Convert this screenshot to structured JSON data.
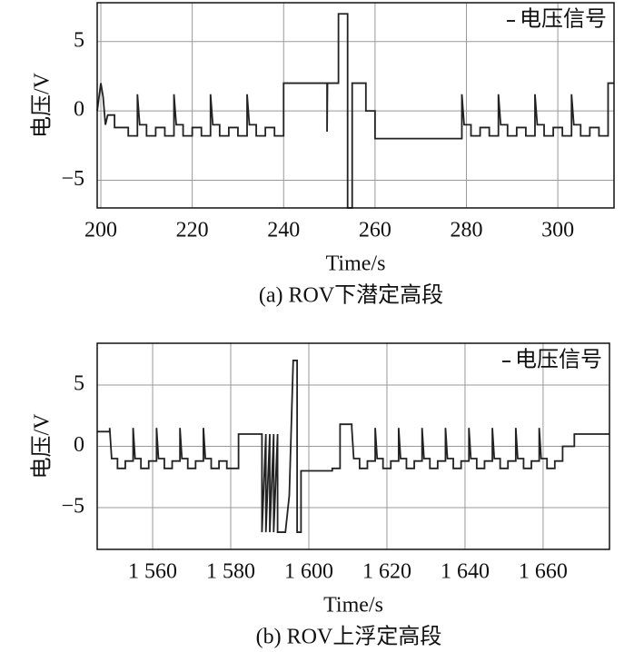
{
  "chart_data": [
    {
      "type": "line",
      "caption": "(a) ROV下潜定高段",
      "xlabel": "Time/s",
      "ylabel": "电压/V",
      "xlim": [
        199.2,
        312.3
      ],
      "ylim": [
        -7,
        7.8
      ],
      "xticks": [
        200,
        220,
        240,
        260,
        280,
        300
      ],
      "yticks": [
        {
          "value": -5,
          "label": "−5"
        },
        0,
        5
      ],
      "grid": true,
      "legend": "upper right",
      "x": [
        199.2,
        200,
        200.5,
        201,
        201.5,
        203,
        203,
        206,
        206,
        208,
        208,
        208.5,
        210,
        210,
        212,
        212,
        214,
        214,
        216,
        216,
        216.5,
        218,
        218,
        220,
        220,
        222,
        222,
        224,
        224,
        224.5,
        226,
        226,
        228,
        228,
        230,
        230,
        232,
        232,
        232.5,
        234,
        234,
        236,
        236,
        238,
        238,
        240,
        240,
        249.5,
        249.5,
        249.6,
        252,
        252,
        254,
        254,
        255,
        255,
        258,
        258,
        260,
        260,
        279,
        279,
        279.5,
        281,
        281,
        283,
        283,
        285,
        285,
        287,
        287,
        287.5,
        289,
        289,
        291,
        291,
        293,
        293,
        295,
        295,
        295.5,
        297,
        297,
        299,
        299,
        301,
        301,
        303,
        303,
        303.5,
        305,
        305,
        307,
        307,
        309,
        309,
        311,
        311,
        312.3
      ],
      "series": [
        {
          "name": "电压信号",
          "color": "#222222",
          "values": [
            0,
            2,
            1,
            -1,
            -0.3,
            -0.3,
            -1.2,
            -1.2,
            -1.8,
            -1.8,
            1.2,
            -1,
            -1,
            -1.8,
            -1.8,
            -1.2,
            -1.2,
            -1.8,
            -1.8,
            1.2,
            -1,
            -1,
            -1.8,
            -1.8,
            -1.2,
            -1.2,
            -1.8,
            -1.8,
            1.2,
            -1,
            -1,
            -1.8,
            -1.8,
            -1.2,
            -1.2,
            -1.8,
            -1.8,
            1.2,
            -1,
            -1,
            -1.8,
            -1.8,
            -1.2,
            -1.2,
            -1.8,
            -1.8,
            2,
            2,
            -1.5,
            2,
            2,
            7,
            7,
            -7,
            -7,
            2,
            2,
            0,
            0,
            -2,
            -2,
            1.2,
            -1,
            -1,
            -1.8,
            -1.8,
            -1.2,
            -1.2,
            -1.8,
            -1.8,
            1.2,
            -1,
            -1,
            -1.8,
            -1.8,
            -1.2,
            -1.2,
            -1.8,
            -1.8,
            1.2,
            -1,
            -1,
            -1.8,
            -1.8,
            -1.2,
            -1.2,
            -1.8,
            -1.8,
            1.2,
            -1,
            -1,
            -1.8,
            -1.8,
            -1.2,
            -1.2,
            -1.8,
            -1.8,
            2,
            2
          ]
        }
      ]
    },
    {
      "type": "line",
      "caption": "(b) ROV上浮定高段",
      "xlabel": "Time/s",
      "ylabel": "电压/V",
      "xlim": [
        1545.8,
        1677
      ],
      "ylim": [
        -8.4,
        8.4
      ],
      "xticks": [
        {
          "value": 1560,
          "label": "1 560"
        },
        {
          "value": 1580,
          "label": "1 580"
        },
        {
          "value": 1600,
          "label": "1 600"
        },
        {
          "value": 1620,
          "label": "1 620"
        },
        {
          "value": 1640,
          "label": "1 640"
        },
        {
          "value": 1660,
          "label": "1 660"
        }
      ],
      "yticks": [
        {
          "value": -5,
          "label": "−5"
        },
        0,
        5
      ],
      "grid": true,
      "legend": "upper right",
      "x": [
        1545.8,
        1549,
        1549,
        1549.5,
        1551,
        1551,
        1553,
        1553,
        1555,
        1555,
        1555.5,
        1557,
        1557,
        1559,
        1559,
        1561,
        1561,
        1561.5,
        1563,
        1563,
        1565,
        1565,
        1567,
        1567,
        1567.5,
        1569,
        1569,
        1571,
        1571,
        1573,
        1573,
        1573.5,
        1575,
        1575,
        1577,
        1577,
        1579,
        1579,
        1582,
        1582,
        1588,
        1588,
        1589,
        1589,
        1590,
        1590,
        1591,
        1591,
        1592,
        1592,
        1594,
        1595,
        1596,
        1597,
        1597,
        1598,
        1598,
        1606,
        1606,
        1608,
        1608,
        1611,
        1611,
        1611.5,
        1613,
        1613,
        1615,
        1615,
        1617,
        1617,
        1617.5,
        1619,
        1619,
        1621,
        1621,
        1623,
        1623,
        1623.5,
        1625,
        1625,
        1627,
        1627,
        1629,
        1629,
        1629.5,
        1631,
        1631,
        1633,
        1633,
        1635,
        1635,
        1635.5,
        1637,
        1637,
        1639,
        1639,
        1641,
        1641,
        1641.5,
        1643,
        1643,
        1645,
        1645,
        1647,
        1647,
        1647.5,
        1649,
        1649,
        1651,
        1651,
        1653,
        1653,
        1653.5,
        1655,
        1655,
        1657,
        1657,
        1659,
        1659,
        1659.5,
        1661,
        1661,
        1663,
        1663,
        1665,
        1665,
        1668,
        1668,
        1677
      ],
      "series": [
        {
          "name": "电压信号",
          "color": "#222222",
          "values": [
            1.2,
            1.2,
            1.5,
            -1,
            -1,
            -1.8,
            -1.8,
            -1.2,
            -1.2,
            1.5,
            -1,
            -1,
            -1.8,
            -1.8,
            -1.2,
            -1.2,
            1.5,
            -1,
            -1,
            -1.8,
            -1.8,
            -1.2,
            -1.2,
            1.5,
            -1,
            -1,
            -1.8,
            -1.8,
            -1.2,
            -1.2,
            1.5,
            -1,
            -1,
            -1.8,
            -1.8,
            -1.2,
            -1.2,
            -1.8,
            -1.8,
            1,
            1,
            -7,
            1,
            -7,
            1,
            -7,
            1,
            -7,
            1,
            -7,
            -7,
            -4,
            7,
            7,
            -7,
            -7,
            -2,
            -2,
            -1.8,
            -1.8,
            1.8,
            1.8,
            1.5,
            -1,
            -1,
            -1.8,
            -1.8,
            -1.2,
            -1.2,
            1.5,
            -1,
            -1,
            -1.8,
            -1.8,
            -1.2,
            -1.2,
            1.5,
            -1,
            -1,
            -1.8,
            -1.8,
            -1.2,
            -1.2,
            1.5,
            -1,
            -1,
            -1.8,
            -1.8,
            -1.2,
            -1.2,
            1.5,
            -1,
            -1,
            -1.8,
            -1.8,
            -1.2,
            -1.2,
            1.5,
            -1,
            -1,
            -1.8,
            -1.8,
            -1.2,
            -1.2,
            1.5,
            -1,
            -1,
            -1.8,
            -1.8,
            -1.2,
            -1.2,
            1.5,
            -1,
            -1,
            -1.8,
            -1.8,
            -1.2,
            -1.2,
            1.5,
            -1,
            -1,
            -1.8,
            -1.8,
            -1.2,
            -1.2,
            0,
            0,
            1,
            1
          ]
        }
      ]
    }
  ]
}
